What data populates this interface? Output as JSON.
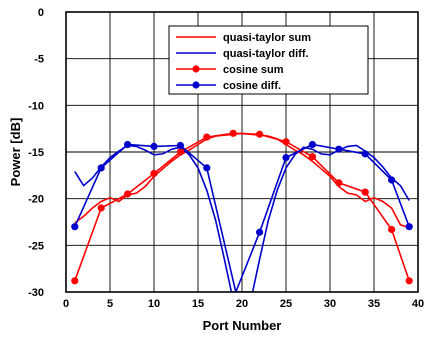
{
  "chart_data": {
    "type": "line",
    "title": "",
    "xlabel": "Port Number",
    "ylabel": "Power [dB]",
    "xlim": [
      0,
      40
    ],
    "ylim": [
      -30,
      0
    ],
    "xticks": [
      0,
      5,
      10,
      15,
      20,
      25,
      30,
      35,
      40
    ],
    "yticks": [
      0,
      -5,
      -10,
      -15,
      -20,
      -25,
      -30
    ],
    "grid": true,
    "legend_position": "top-right",
    "series": [
      {
        "name": "quasi-taylor sum",
        "color": "#ff0000",
        "marker": "none",
        "x": [
          1,
          2,
          3,
          4,
          5,
          6,
          7,
          8,
          9,
          10,
          11,
          12,
          13,
          14,
          15,
          16,
          17,
          18,
          19,
          20,
          21,
          22,
          23,
          24,
          25,
          26,
          27,
          28,
          29,
          30,
          31,
          32,
          33,
          34,
          35,
          36,
          37,
          38,
          39
        ],
        "y": [
          -22.6,
          -21.9,
          -21.0,
          -20.3,
          -19.9,
          -20.3,
          -19.6,
          -19.4,
          -18.7,
          -17.6,
          -16.8,
          -16.0,
          -15.3,
          -14.8,
          -14.2,
          -13.6,
          -13.3,
          -13.2,
          -13.1,
          -13.0,
          -13.1,
          -13.2,
          -13.3,
          -13.6,
          -14.2,
          -14.8,
          -15.3,
          -16.0,
          -16.8,
          -17.6,
          -18.7,
          -19.4,
          -19.6,
          -20.3,
          -19.9,
          -20.3,
          -21.0,
          -22.8,
          -23.1
        ]
      },
      {
        "name": "quasi-taylor diff.",
        "color": "#0000cc",
        "marker": "none",
        "x": [
          1,
          2,
          3,
          4,
          5,
          6,
          7,
          8,
          9,
          10,
          11,
          12,
          13,
          14,
          15,
          16,
          17,
          18,
          18.8,
          21.2,
          22,
          23,
          24,
          25,
          26,
          27,
          28,
          29,
          30,
          31,
          32,
          33,
          34,
          35,
          36,
          37,
          38,
          39
        ],
        "y": [
          -17.1,
          -18.6,
          -17.8,
          -16.6,
          -15.6,
          -14.9,
          -14.3,
          -14.4,
          -14.8,
          -15.3,
          -15.2,
          -14.7,
          -14.5,
          -15.3,
          -16.7,
          -19.1,
          -22.3,
          -26.5,
          -30,
          -30,
          -26.5,
          -22.3,
          -19.1,
          -16.7,
          -15.3,
          -14.5,
          -14.7,
          -15.2,
          -15.3,
          -14.8,
          -14.4,
          -14.3,
          -14.9,
          -15.6,
          -16.6,
          -17.8,
          -18.6,
          -20.2
        ]
      },
      {
        "name": "cosine sum",
        "color": "#ff0000",
        "marker": "circle",
        "x": [
          1,
          4,
          7,
          10,
          13,
          16,
          19,
          22,
          25,
          28,
          31,
          34,
          37,
          39
        ],
        "y": [
          -28.8,
          -21.0,
          -19.5,
          -17.3,
          -15.0,
          -13.4,
          -13.0,
          -13.1,
          -13.9,
          -15.5,
          -18.3,
          -19.3,
          -23.3,
          -28.8
        ]
      },
      {
        "name": "cosine diff.",
        "color": "#0000cc",
        "marker": "circle",
        "x": [
          1,
          4,
          7,
          10,
          13,
          16,
          19.3,
          22,
          25,
          28,
          31,
          34,
          37,
          39
        ],
        "y": [
          -23.0,
          -16.7,
          -14.2,
          -14.4,
          -14.3,
          -16.7,
          -30,
          -23.6,
          -15.6,
          -14.2,
          -14.7,
          -15.2,
          -18.0,
          -23.0
        ]
      }
    ]
  }
}
